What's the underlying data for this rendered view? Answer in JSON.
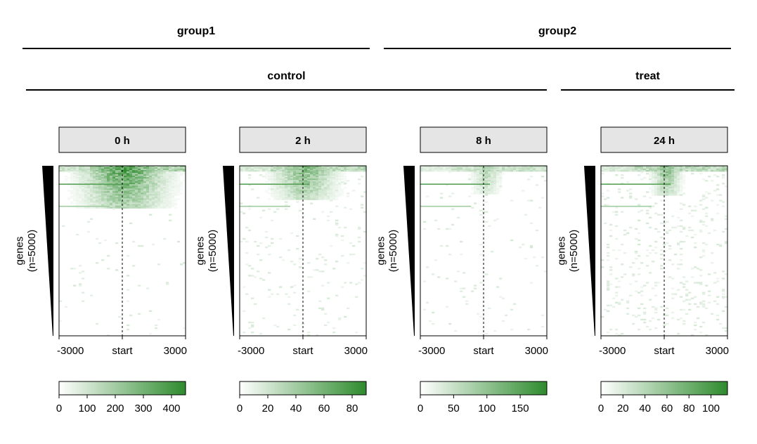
{
  "headers": {
    "groups": [
      {
        "label": "group1"
      },
      {
        "label": "group2"
      }
    ],
    "conditions": [
      {
        "label": "control"
      },
      {
        "label": "treat"
      }
    ]
  },
  "chart_data": [
    {
      "type": "heatmap",
      "title": "0 h",
      "ylabel": "genes\n(n=5000)",
      "x_ticks": [
        "-3000",
        "start",
        "3000"
      ],
      "xlim": [
        -3000,
        3000
      ],
      "n_rows": 5000,
      "colorbar": {
        "min": 0,
        "max": 450,
        "ticks": [
          0,
          100,
          200,
          300,
          400
        ],
        "low_color": "#ffffff",
        "high_color": "#2e8b2e"
      },
      "colors": {
        "high": "#2e8b2e"
      }
    },
    {
      "type": "heatmap",
      "title": "2 h",
      "ylabel": "genes\n(n=5000)",
      "x_ticks": [
        "-3000",
        "start",
        "3000"
      ],
      "xlim": [
        -3000,
        3000
      ],
      "n_rows": 5000,
      "colorbar": {
        "min": 0,
        "max": 90,
        "ticks": [
          0,
          20,
          40,
          60,
          80
        ],
        "low_color": "#ffffff",
        "high_color": "#2e8b2e"
      },
      "colors": {
        "high": "#2e8b2e"
      }
    },
    {
      "type": "heatmap",
      "title": "8 h",
      "ylabel": "genes\n(n=5000)",
      "x_ticks": [
        "-3000",
        "start",
        "3000"
      ],
      "xlim": [
        -3000,
        3000
      ],
      "n_rows": 5000,
      "colorbar": {
        "min": 0,
        "max": 190,
        "ticks": [
          0,
          50,
          100,
          150
        ],
        "low_color": "#ffffff",
        "high_color": "#2e8b2e"
      },
      "colors": {
        "high": "#2e8b2e"
      }
    },
    {
      "type": "heatmap",
      "title": "24 h",
      "ylabel": "genes\n(n=5000)",
      "x_ticks": [
        "-3000",
        "start",
        "3000"
      ],
      "xlim": [
        -3000,
        3000
      ],
      "n_rows": 5000,
      "colorbar": {
        "min": 0,
        "max": 115,
        "ticks": [
          0,
          20,
          40,
          60,
          80,
          100
        ],
        "low_color": "#ffffff",
        "high_color": "#2e8b2e"
      },
      "colors": {
        "high": "#2e8b2e"
      }
    }
  ]
}
